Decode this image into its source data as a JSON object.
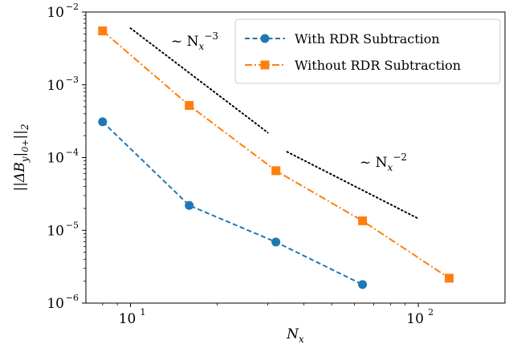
{
  "chart_data": {
    "type": "line",
    "xscale": "log",
    "yscale": "log",
    "xlim": [
      7,
      200
    ],
    "ylim": [
      1e-06,
      0.01
    ],
    "xlabel": "N_x",
    "ylabel": "||ΔB_y|_{0+}||_2",
    "grid": false,
    "legend_position": "top-right",
    "x_ticks": [
      {
        "value": 10,
        "base": "10",
        "exp": "1"
      },
      {
        "value": 100,
        "base": "10",
        "exp": "2"
      }
    ],
    "y_ticks": [
      {
        "value": 1e-06,
        "base": "10",
        "exp": "−6"
      },
      {
        "value": 1e-05,
        "base": "10",
        "exp": "−5"
      },
      {
        "value": 0.0001,
        "base": "10",
        "exp": "−4"
      },
      {
        "value": 0.001,
        "base": "10",
        "exp": "−3"
      },
      {
        "value": 0.01,
        "base": "10",
        "exp": "−2"
      }
    ],
    "series": [
      {
        "name": "With RDR Subtraction",
        "color": "#1f77b4",
        "linestyle": "dashed",
        "marker": "circle",
        "x": [
          8,
          16,
          32,
          64
        ],
        "y": [
          0.00031,
          2.2e-05,
          6.9e-06,
          1.8e-06
        ]
      },
      {
        "name": "Without RDR Subtraction",
        "color": "#ff7f0e",
        "linestyle": "dashdot",
        "marker": "square",
        "x": [
          8,
          16,
          32,
          64,
          128
        ],
        "y": [
          0.0055,
          0.00052,
          6.6e-05,
          1.35e-05,
          2.2e-06
        ]
      }
    ],
    "reference_lines": [
      {
        "label_base": "~ N",
        "label_sub": "x",
        "label_sup": "−3",
        "x": [
          10,
          30
        ],
        "y": [
          0.006,
          0.00022
        ]
      },
      {
        "label_base": "~ N",
        "label_sub": "x",
        "label_sup": "−2",
        "x": [
          35,
          100
        ],
        "y": [
          0.00012,
          1.45e-05
        ]
      }
    ]
  }
}
